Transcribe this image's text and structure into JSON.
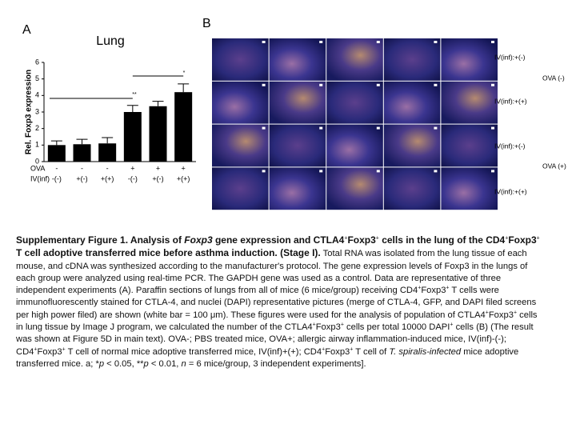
{
  "panel_labels": [
    "A",
    "B"
  ],
  "chart_data": {
    "type": "bar",
    "title": "Lung",
    "y_label": "Rel. Foxp3 expression",
    "category_rows": [
      {
        "name": "OVA",
        "labels": [
          "-",
          "-",
          "-",
          "+",
          "+",
          "+"
        ]
      },
      {
        "name": "IV(inf)",
        "labels": [
          "-(-)",
          "+(-)",
          "+(+)",
          "-(-)",
          "+(-)",
          "+(+)"
        ]
      }
    ],
    "values": [
      1.0,
      1.05,
      1.1,
      3.0,
      3.35,
      4.2
    ],
    "errors": [
      0.25,
      0.3,
      0.35,
      0.4,
      0.3,
      0.5
    ],
    "color": "#000000",
    "ylim": [
      0,
      6
    ],
    "yticks": [
      0,
      1,
      2,
      3,
      4,
      5,
      6
    ],
    "annotations": [
      "**",
      "*"
    ]
  },
  "panel_b": {
    "row_labels": [
      "IV(inf):+(-)",
      "IV(inf):+(+)",
      "IV(inf):+(-)",
      "IV(inf):+(+)"
    ],
    "group_labels": [
      "OVA (-)",
      "OVA (+)"
    ]
  },
  "caption": [
    {
      "text": "Supplementary Figure 1. Analysis of ",
      "style": "bold"
    },
    {
      "text": "Foxp3",
      "style": "bold-italic"
    },
    {
      "text": " gene expression and CTLA4",
      "style": "bold"
    },
    {
      "text": "+",
      "style": "sup"
    },
    {
      "text": "Foxp3",
      "style": "bold"
    },
    {
      "text": "+",
      "style": "sup"
    },
    {
      "text": " cells in the lung of the CD4",
      "style": "bold"
    },
    {
      "text": "+",
      "style": "sup"
    },
    {
      "text": "Foxp3",
      "style": "bold"
    },
    {
      "text": "+",
      "style": "sup"
    },
    {
      "text": " T cell adoptive transferred mice before asthma induction. (Stage I).",
      "style": "bold"
    },
    {
      "text": " Total RNA was isolated from the lung tissue of each mouse, and cDNA was synthesized according to the manufacturer's protocol. The gene expression levels of Foxp3 in the lungs of each group were analyzed using real-time PCR. The GAPDH gene was used as a control. Data are representative of three independent experiments (A). Paraffin sections of lungs from all of mice (6 mice/group) receiving CD4",
      "style": "normal"
    },
    {
      "text": "+",
      "style": "sup"
    },
    {
      "text": "Foxp3",
      "style": "normal"
    },
    {
      "text": "+",
      "style": "sup"
    },
    {
      "text": " T cells were immunofluorescently stained for CTLA-4, and nuclei (DAPI) representative pictures (merge of CTLA-4, GFP, and DAPI filed screens per high power filed) are shown (white bar = 100 μm). These figures were used for the analysis of population of CTLA4",
      "style": "normal"
    },
    {
      "text": "+",
      "style": "sup"
    },
    {
      "text": "Foxp3",
      "style": "normal"
    },
    {
      "text": "+",
      "style": "sup"
    },
    {
      "text": " cells in lung tissue by Image J program, we calculated the number of the CTLA4",
      "style": "normal"
    },
    {
      "text": "+",
      "style": "sup"
    },
    {
      "text": "Foxp3",
      "style": "normal"
    },
    {
      "text": "+",
      "style": "sup"
    },
    {
      "text": " cells per total 10000 DAPI",
      "style": "normal"
    },
    {
      "text": "+",
      "style": "sup"
    },
    {
      "text": " cells (B) (The result was shown at Figure 5D in main text). OVA-; PBS treated mice, OVA+; allergic airway inflammation-induced mice, IV(inf)-(-); CD4",
      "style": "normal"
    },
    {
      "text": "+",
      "style": "sup"
    },
    {
      "text": "Foxp3",
      "style": "normal"
    },
    {
      "text": "+",
      "style": "sup"
    },
    {
      "text": " T cell of normal mice adoptive transferred mice, IV(inf)+(+); CD4",
      "style": "normal"
    },
    {
      "text": "+",
      "style": "sup"
    },
    {
      "text": "Foxp3",
      "style": "normal"
    },
    {
      "text": "+",
      "style": "sup"
    },
    {
      "text": " T cell of ",
      "style": "normal"
    },
    {
      "text": "T. spiralis-infected",
      "style": "italic"
    },
    {
      "text": " mice adoptive transferred mice. a; *",
      "style": "normal"
    },
    {
      "text": "p",
      "style": "italic"
    },
    {
      "text": " < 0.05, **",
      "style": "normal"
    },
    {
      "text": "p",
      "style": "italic"
    },
    {
      "text": " < 0.01, ",
      "style": "normal"
    },
    {
      "text": "n",
      "style": "italic"
    },
    {
      "text": " = 6 mice/group, 3 independent experiments].",
      "style": "normal"
    }
  ]
}
